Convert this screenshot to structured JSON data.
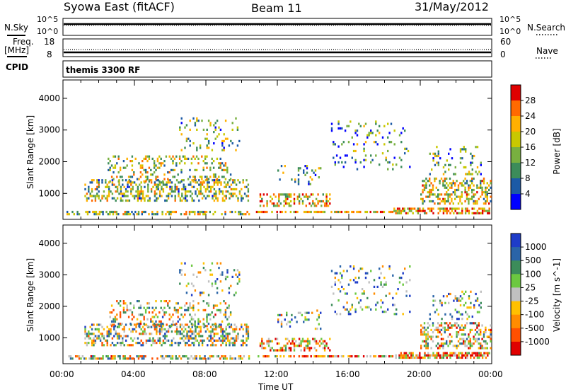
{
  "header": {
    "station": "Syowa East (fitACF)",
    "beam": "Beam 11",
    "date": "31/May/2012"
  },
  "top_panels": {
    "nsky_label": "N.Sky",
    "nsky_ticks": [
      "10^5",
      "10^0"
    ],
    "nsearch_label": "N.Search",
    "nsearch_ticks": [
      "10^5",
      "10^0"
    ],
    "freq_label": "Freq.",
    "freq_unit": "[MHz]",
    "freq_ticks": [
      "18",
      "8"
    ],
    "nave_label": "Nave",
    "nave_ticks": [
      "60",
      "0"
    ],
    "cpid_label": "CPID",
    "cpid_value": "themis 3300 RF"
  },
  "chart_data": [
    {
      "type": "heatmap",
      "quantity": "Power",
      "colorbar_label": "Power [dB]",
      "colorbar_ticks": [
        "28",
        "24",
        "20",
        "16",
        "12",
        "8",
        "4"
      ],
      "colorbar_colors": [
        "#e00000",
        "#ff6a00",
        "#ffb000",
        "#c8c800",
        "#78b040",
        "#3c8c5a",
        "#1c5aa6",
        "#0000ff"
      ],
      "ylabel": "Slant Range [km]",
      "ylim": [
        180,
        4580
      ],
      "yticks": [
        "4000",
        "3000",
        "2000",
        "1000"
      ],
      "xlim": [
        0,
        24
      ],
      "xtick_labels": [
        "00:00",
        "04:00",
        "08:00",
        "12:00",
        "16:00",
        "20:00",
        "00:00"
      ],
      "xlabel": "Time UT"
    },
    {
      "type": "heatmap",
      "quantity": "Velocity",
      "colorbar_label": "Velocity [m s^-1]",
      "colorbar_ticks": [
        "1000",
        "500",
        "100",
        "25",
        "-25",
        "-100",
        "-500",
        "-1000"
      ],
      "colorbar_colors": [
        "#1e3cc8",
        "#2a64a8",
        "#3c8c5a",
        "#6cc840",
        "#c0c0c0",
        "#ffc000",
        "#ff8c00",
        "#ff5000",
        "#e00000"
      ],
      "ylabel": "Slant Range [km]",
      "ylim": [
        180,
        4580
      ],
      "yticks": [
        "4000",
        "3000",
        "2000",
        "1000"
      ],
      "xlim": [
        0,
        24
      ],
      "xtick_labels": [
        "00:00",
        "04:00",
        "08:00",
        "12:00",
        "16:00",
        "20:00",
        "00:00"
      ],
      "xlabel": "Time UT"
    }
  ]
}
